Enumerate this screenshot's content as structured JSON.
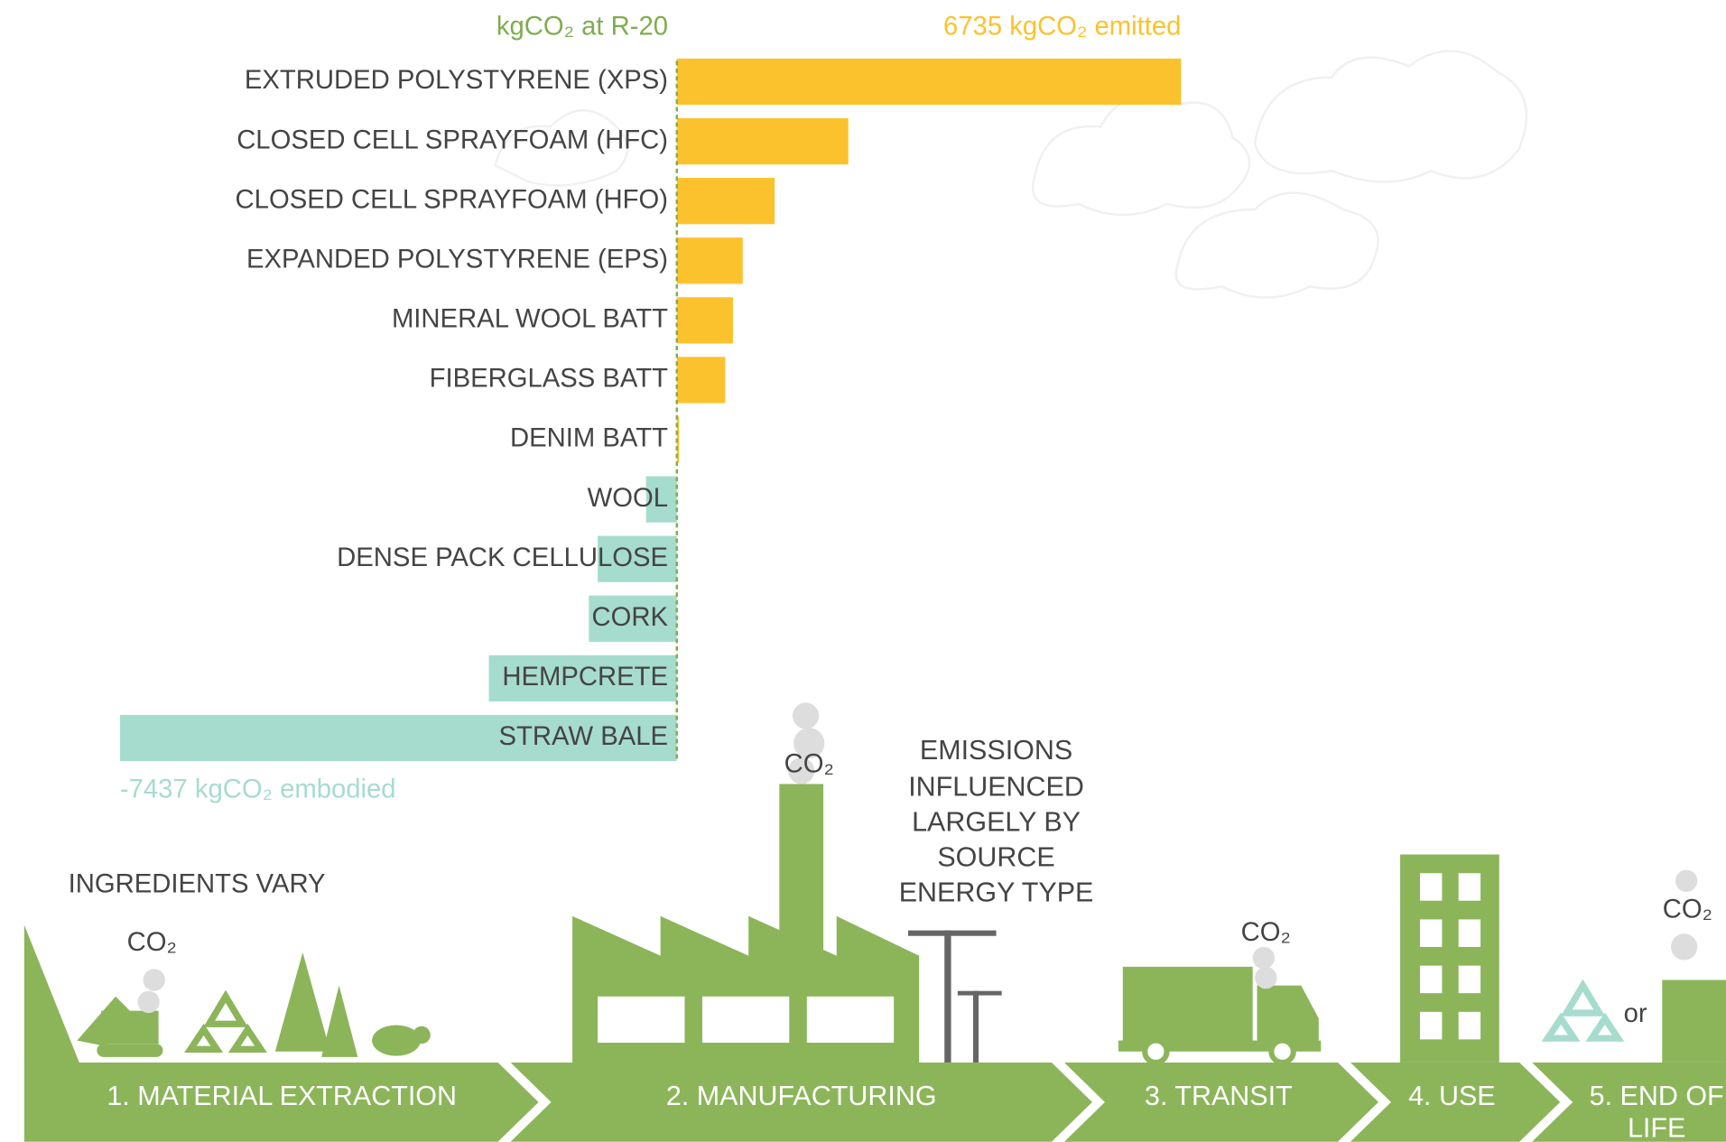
{
  "chart_data": {
    "type": "bar",
    "orientation": "horizontal",
    "x_label": "kgCO₂ at R-20",
    "categories": [
      "EXTRUDED POLYSTYRENE (XPS)",
      "CLOSED CELL SPRAYFOAM (HFC)",
      "CLOSED CELL SPRAYFOAM (HFO)",
      "EXPANDED POLYSTYRENE (EPS)",
      "MINERAL WOOL BATT",
      "FIBERGLASS BATT",
      "DENIM BATT",
      "WOOL",
      "DENSE PACK CELLULOSE",
      "CORK",
      "HEMPCRETE",
      "STRAW BALE"
    ],
    "values": [
      6735,
      2290,
      1306,
      880,
      750,
      646,
      30,
      -411,
      -1057,
      -1175,
      -2510,
      -7437
    ],
    "value_labels": [
      "6735 kgCO₂ emitted",
      null,
      null,
      null,
      null,
      null,
      null,
      null,
      null,
      null,
      null,
      "-7437 kgCO₂ embodied"
    ],
    "xlim": [
      -7437,
      6735
    ],
    "positive_color": "#fcc22d",
    "negative_color": "#a6dccd",
    "zero_line_color": "#7fad4f"
  },
  "lifecycle": {
    "stages": [
      [
        "1. MATERIAL EXTRACTION"
      ],
      [
        "2. MANUFACTURING"
      ],
      [
        "3. TRANSIT"
      ],
      [
        "4. USE"
      ],
      [
        "5. END OF",
        "LIFE"
      ]
    ],
    "notes": {
      "ingredients": "INGREDIENTS VARY",
      "emissions": [
        "EMISSIONS",
        "INFLUENCED",
        "LARGELY BY",
        "SOURCE",
        "ENERGY TYPE"
      ],
      "or": "or"
    },
    "co2": [
      "CO₂",
      "CO₂",
      "CO₂",
      "CO₂"
    ]
  }
}
